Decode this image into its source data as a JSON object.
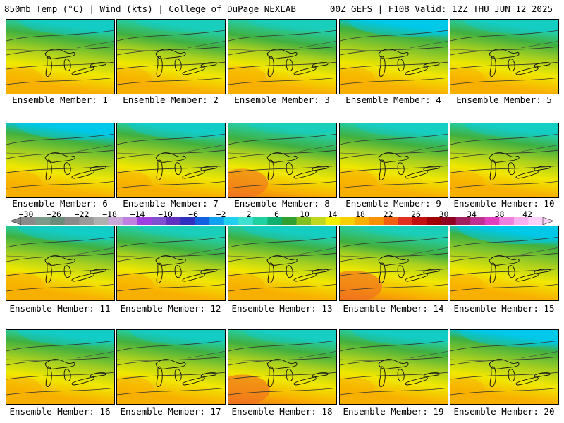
{
  "header": {
    "left": "850mb Temp (°C) | Wind (kts) | College of DuPage NEXLAB",
    "right": "00Z GEFS | F108 Valid: 12Z THU JUN 12 2025"
  },
  "panels": [
    {
      "label": "Ensemble Member: 1",
      "cool": 0.55,
      "warm": 0.45
    },
    {
      "label": "Ensemble Member: 2",
      "cool": 0.35,
      "warm": 0.35
    },
    {
      "label": "Ensemble Member: 3",
      "cool": 0.3,
      "warm": 0.6
    },
    {
      "label": "Ensemble Member: 4",
      "cool": 0.7,
      "warm": 0.4
    },
    {
      "label": "Ensemble Member: 5",
      "cool": 0.5,
      "warm": 0.35
    },
    {
      "label": "Ensemble Member: 6",
      "cool": 0.65,
      "warm": 0.4
    },
    {
      "label": "Ensemble Member: 7",
      "cool": 0.6,
      "warm": 0.35
    },
    {
      "label": "Ensemble Member: 8",
      "cool": 0.3,
      "warm": 0.65
    },
    {
      "label": "Ensemble Member: 9",
      "cool": 0.45,
      "warm": 0.55
    },
    {
      "label": "Ensemble Member: 10",
      "cool": 0.5,
      "warm": 0.35
    },
    {
      "label": "Ensemble Member: 11",
      "cool": 0.6,
      "warm": 0.55
    },
    {
      "label": "Ensemble Member: 12",
      "cool": 0.3,
      "warm": 0.5
    },
    {
      "label": "Ensemble Member: 13",
      "cool": 0.5,
      "warm": 0.45
    },
    {
      "label": "Ensemble Member: 14",
      "cool": 0.25,
      "warm": 0.8
    },
    {
      "label": "Ensemble Member: 15",
      "cool": 0.75,
      "warm": 0.3
    },
    {
      "label": "Ensemble Member: 16",
      "cool": 0.6,
      "warm": 0.45
    },
    {
      "label": "Ensemble Member: 17",
      "cool": 0.55,
      "warm": 0.5
    },
    {
      "label": "Ensemble Member: 18",
      "cool": 0.45,
      "warm": 0.75
    },
    {
      "label": "Ensemble Member: 19",
      "cool": 0.55,
      "warm": 0.4
    },
    {
      "label": "Ensemble Member: 20",
      "cool": 0.7,
      "warm": 0.35
    }
  ],
  "colorbar": {
    "ticks": [
      "−30",
      "−26",
      "−22",
      "−18",
      "−14",
      "−10",
      "−6",
      "−2",
      "2",
      "6",
      "10",
      "14",
      "18",
      "22",
      "26",
      "30",
      "34",
      "38",
      "42"
    ],
    "colors": [
      "#8a8a8a",
      "#7a9a8a",
      "#6a8a7a",
      "#8a8a8a",
      "#9a9a9a",
      "#b0b0b0",
      "#c8a8d8",
      "#c080e0",
      "#a040e0",
      "#8050d0",
      "#6030c0",
      "#3030c0",
      "#1060e0",
      "#10a0f0",
      "#20d0f0",
      "#40e0d0",
      "#20d0a0",
      "#10b070",
      "#30a030",
      "#80c020",
      "#c0d820",
      "#f0f000",
      "#f8d000",
      "#f8b000",
      "#f89000",
      "#f06010",
      "#e03020",
      "#c01010",
      "#a00000",
      "#900020",
      "#a02060",
      "#c03090",
      "#e040c0",
      "#f080e0",
      "#f8b0f0",
      "#fcd0f8"
    ]
  },
  "colors": {
    "cool_deep": "#00c8e8",
    "cool": "#20d0b0",
    "mid_green": "#40b040",
    "lime": "#a8d020",
    "yellow": "#f0e800",
    "orange": "#f8b000",
    "red": "#f07020"
  }
}
